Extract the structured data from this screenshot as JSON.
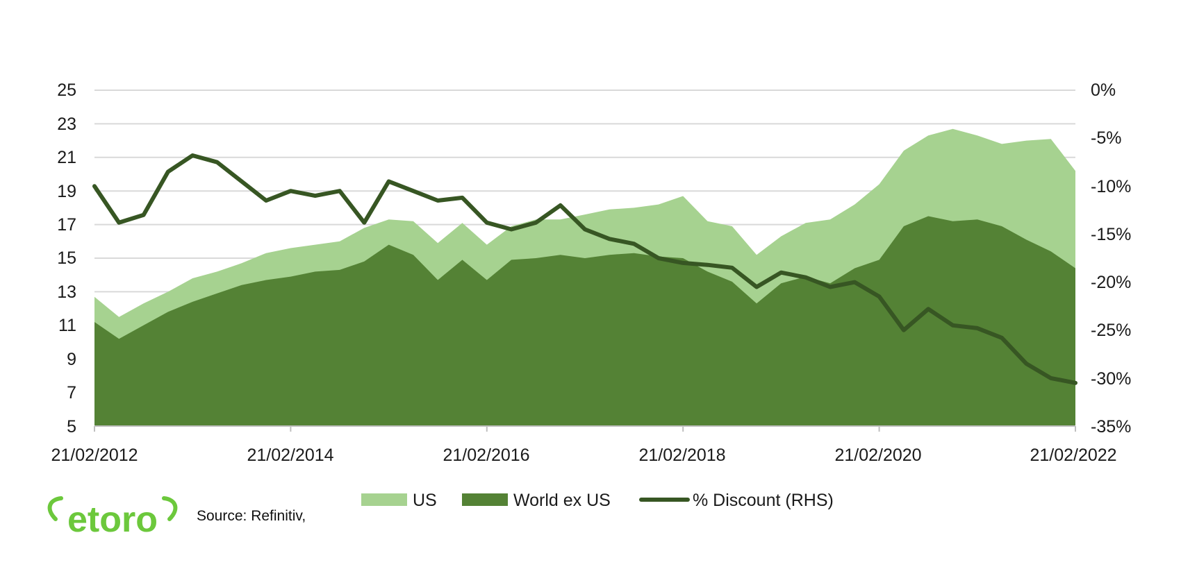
{
  "colors": {
    "us_area": "#a6d290",
    "world_area": "#548235",
    "discount_line": "#375623",
    "grid": "#d9d9d9",
    "logo_green": "#6cc83c"
  },
  "logo_text": "etoro",
  "source_text": "Source: Refinitiv,",
  "chart_data": {
    "type": "area",
    "title": "",
    "xlabel": "",
    "ylabel": "",
    "x_ticks": [
      "21/02/2012",
      "21/02/2014",
      "21/02/2016",
      "21/02/2018",
      "21/02/2020",
      "21/02/2022"
    ],
    "ylim": [
      5,
      25
    ],
    "y_ticks": [
      "5",
      "7",
      "9",
      "11",
      "13",
      "15",
      "17",
      "19",
      "21",
      "23",
      "25"
    ],
    "y2lim": [
      -35,
      0
    ],
    "y2_ticks": [
      "-35%",
      "-30%",
      "-25%",
      "-20%",
      "-15%",
      "-10%",
      "-5%",
      "0%"
    ],
    "grid": true,
    "legend_position": "bottom",
    "x_dates": [
      "2012-02",
      "2012-05",
      "2012-08",
      "2012-11",
      "2013-02",
      "2013-05",
      "2013-08",
      "2013-11",
      "2014-02",
      "2014-05",
      "2014-08",
      "2014-11",
      "2015-02",
      "2015-05",
      "2015-08",
      "2015-11",
      "2016-02",
      "2016-05",
      "2016-08",
      "2016-11",
      "2017-02",
      "2017-05",
      "2017-08",
      "2017-11",
      "2018-02",
      "2018-05",
      "2018-08",
      "2018-11",
      "2019-02",
      "2019-05",
      "2019-08",
      "2019-11",
      "2020-02",
      "2020-05",
      "2020-08",
      "2020-11",
      "2021-02",
      "2021-05",
      "2021-08",
      "2021-11",
      "2022-02"
    ],
    "series": [
      {
        "name": "US",
        "type": "area",
        "axis": "left",
        "values": [
          12.7,
          11.5,
          12.3,
          13.0,
          13.8,
          14.2,
          14.7,
          15.3,
          15.6,
          15.8,
          16.0,
          16.8,
          17.3,
          17.2,
          15.9,
          17.1,
          15.8,
          16.9,
          17.3,
          17.3,
          17.6,
          17.9,
          18.0,
          18.2,
          18.7,
          17.2,
          16.9,
          15.2,
          16.3,
          17.1,
          17.3,
          18.2,
          19.4,
          21.4,
          22.3,
          22.7,
          22.3,
          21.8,
          22.0,
          22.1,
          20.2
        ]
      },
      {
        "name": "World ex US",
        "type": "area",
        "axis": "left",
        "values": [
          11.2,
          10.2,
          11.0,
          11.8,
          12.4,
          12.9,
          13.4,
          13.7,
          13.9,
          14.2,
          14.3,
          14.8,
          15.8,
          15.2,
          13.7,
          14.9,
          13.7,
          14.9,
          15.0,
          15.2,
          15.0,
          15.2,
          15.3,
          15.1,
          15.0,
          14.2,
          13.6,
          12.3,
          13.5,
          13.9,
          13.5,
          14.4,
          14.9,
          16.9,
          17.5,
          17.2,
          17.3,
          16.9,
          16.1,
          15.4,
          14.4
        ]
      },
      {
        "name": "% Discount (RHS)",
        "type": "line",
        "axis": "right",
        "values": [
          -10.0,
          -13.8,
          -13.0,
          -8.5,
          -6.8,
          -7.5,
          -9.5,
          -11.5,
          -10.5,
          -11.0,
          -10.5,
          -13.8,
          -9.5,
          -10.5,
          -11.5,
          -11.2,
          -13.8,
          -14.5,
          -13.8,
          -12.0,
          -14.5,
          -15.5,
          -16.0,
          -17.5,
          -18.0,
          -18.2,
          -18.5,
          -20.5,
          -19.0,
          -19.5,
          -20.5,
          -20.0,
          -21.5,
          -25.0,
          -22.8,
          -24.5,
          -24.8,
          -25.8,
          -28.5,
          -30.0,
          -30.5
        ]
      }
    ]
  }
}
